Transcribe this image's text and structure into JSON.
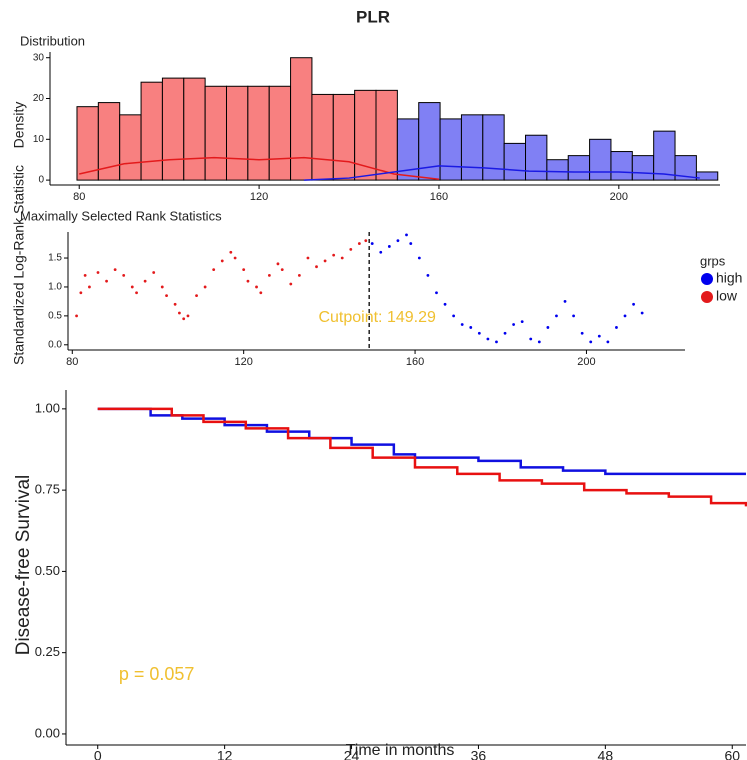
{
  "title": "PLR",
  "chart_data": [
    {
      "type": "histogram",
      "title": "Distribution",
      "ylabel": "Density",
      "bins": [
        79.5,
        84.25,
        89,
        93.75,
        98.5,
        103.25,
        108,
        112.75,
        117.5,
        122.25,
        127,
        131.75,
        136.5,
        141.25,
        146,
        150.75,
        155.5,
        160.25,
        165,
        169.75,
        174.5,
        179.25,
        184,
        188.75,
        193.5,
        198.25,
        203,
        207.75,
        212.5,
        217.25,
        222
      ],
      "counts": [
        18,
        19,
        16,
        24,
        25,
        25,
        23,
        23,
        23,
        23,
        30,
        21,
        21,
        22,
        22,
        15,
        19,
        15,
        16,
        16,
        9,
        11,
        5,
        6,
        10,
        7,
        6,
        12,
        6,
        2
      ],
      "fill_colors": {
        "low": "#f88080",
        "high": "#8080f4"
      },
      "density": [
        {
          "group": "low",
          "color": "#e31a1c",
          "x": [
            80,
            90,
            100,
            110,
            120,
            130,
            140,
            150,
            160
          ],
          "values": [
            1.5,
            4,
            5,
            5.5,
            5,
            5.5,
            4.5,
            1.5,
            0.2
          ]
        },
        {
          "group": "high",
          "color": "#1a1ae3",
          "x": [
            130,
            140,
            150,
            160,
            170,
            180,
            190,
            200,
            210,
            218
          ],
          "values": [
            0,
            0.5,
            2,
            3.5,
            3,
            2.2,
            2,
            2,
            1.5,
            0.5
          ]
        }
      ],
      "xlim": [
        73.5,
        222.5
      ],
      "ylim": [
        -1.2,
        31.4
      ],
      "xticks": [
        80,
        120,
        160,
        200
      ],
      "yticks": [
        0,
        10,
        20,
        30
      ]
    },
    {
      "type": "scatter",
      "title": "Maximally Selected Rank Statistics",
      "ylabel": "Standardized Log-Rank Statistic",
      "legend_title": "grps",
      "cutpoint": {
        "value": 149.29,
        "label": "Cutpoint: 149.29"
      },
      "annotation_color": "#f0c030",
      "series": [
        {
          "name": "high",
          "color": "#0000ee",
          "x": [
            150,
            152,
            154,
            156,
            158,
            159,
            161,
            163,
            165,
            167,
            169,
            171,
            173,
            175,
            177,
            179,
            181,
            183,
            185,
            187,
            189,
            191,
            193,
            195,
            197,
            199,
            201,
            203,
            205,
            207,
            209,
            211,
            213
          ],
          "values": [
            1.75,
            1.6,
            1.7,
            1.8,
            1.9,
            1.75,
            1.5,
            1.2,
            0.9,
            0.7,
            0.5,
            0.35,
            0.3,
            0.2,
            0.1,
            0.05,
            0.2,
            0.35,
            0.4,
            0.1,
            0.05,
            0.3,
            0.5,
            0.75,
            0.5,
            0.2,
            0.05,
            0.15,
            0.05,
            0.3,
            0.5,
            0.7,
            0.55
          ]
        },
        {
          "name": "low",
          "color": "#e31a1c",
          "x": [
            81,
            82,
            83,
            84,
            86,
            88,
            90,
            92,
            94,
            95,
            97,
            99,
            101,
            102,
            104,
            105,
            106,
            107,
            109,
            111,
            113,
            115,
            117,
            118,
            120,
            121,
            123,
            124,
            126,
            128,
            129,
            131,
            133,
            135,
            137,
            139,
            141,
            143,
            145,
            147,
            148.5
          ],
          "values": [
            0.5,
            0.9,
            1.2,
            1.0,
            1.25,
            1.1,
            1.3,
            1.2,
            1.0,
            0.9,
            1.1,
            1.25,
            1.0,
            0.85,
            0.7,
            0.55,
            0.45,
            0.5,
            0.85,
            1.0,
            1.3,
            1.45,
            1.6,
            1.5,
            1.3,
            1.1,
            1.0,
            0.9,
            1.2,
            1.4,
            1.3,
            1.05,
            1.2,
            1.5,
            1.35,
            1.45,
            1.55,
            1.5,
            1.65,
            1.75,
            1.8
          ]
        }
      ],
      "xlim": [
        79,
        223
      ],
      "ylim": [
        -0.09,
        1.95
      ],
      "xticks": [
        80,
        120,
        160,
        200
      ],
      "yticks": [
        {
          "value": 0,
          "label": "0.0"
        },
        0.5,
        {
          "value": 1,
          "label": "1.0"
        },
        1.5
      ]
    },
    {
      "type": "line",
      "step": true,
      "xlabel": "Time in months",
      "ylabel": "Disease-free Survival",
      "annotation": {
        "text": "p = 0.057",
        "x": 2,
        "y": 0.18,
        "color": "#f0c030"
      },
      "series": [
        {
          "name": "high",
          "color": "#1010e0",
          "x": [
            0,
            3,
            5,
            8,
            12,
            16,
            20,
            24,
            28,
            30,
            36,
            40,
            44,
            48,
            61.3
          ],
          "values": [
            1,
            1,
            0.98,
            0.97,
            0.95,
            0.93,
            0.91,
            0.89,
            0.86,
            0.85,
            0.84,
            0.82,
            0.81,
            0.8,
            0.8
          ]
        },
        {
          "name": "low",
          "color": "#e81010",
          "x": [
            0,
            5,
            7,
            10,
            14,
            18,
            22,
            26,
            30,
            34,
            38,
            42,
            46,
            50,
            54,
            58,
            61.3
          ],
          "values": [
            1,
            1,
            0.98,
            0.96,
            0.94,
            0.91,
            0.88,
            0.85,
            0.82,
            0.8,
            0.78,
            0.77,
            0.75,
            0.74,
            0.73,
            0.71,
            0.7
          ]
        }
      ],
      "xlim": [
        -3,
        61.3
      ],
      "ylim": [
        -0.034,
        1.058
      ],
      "xticks": [
        0,
        12,
        24,
        36,
        48,
        60
      ],
      "yticks": [
        {
          "value": 0,
          "label": "0.00"
        },
        {
          "value": 0.25,
          "label": "0.25"
        },
        {
          "value": 0.5,
          "label": "0.50"
        },
        {
          "value": 0.75,
          "label": "0.75"
        },
        {
          "value": 1,
          "label": "1.00"
        }
      ]
    }
  ]
}
